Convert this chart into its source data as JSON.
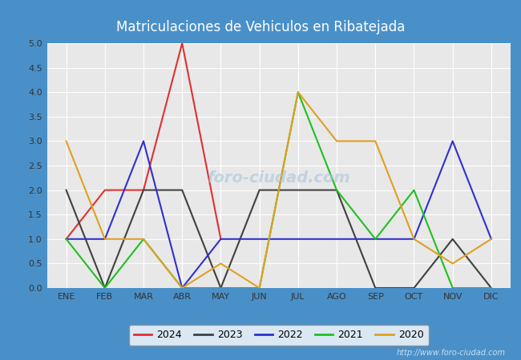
{
  "title": "Matriculaciones de Vehiculos en Ribatejada",
  "months": [
    "ENE",
    "FEB",
    "MAR",
    "ABR",
    "MAY",
    "JUN",
    "JUL",
    "AGO",
    "SEP",
    "OCT",
    "NOV",
    "DIC"
  ],
  "series": {
    "2024": {
      "color": "#e03030",
      "values": [
        1,
        2,
        2,
        5,
        1,
        null,
        null,
        null,
        null,
        null,
        null,
        null
      ]
    },
    "2023": {
      "color": "#404040",
      "values": [
        2,
        0,
        2,
        2,
        0,
        2,
        2,
        2,
        0,
        0,
        1,
        0
      ]
    },
    "2022": {
      "color": "#3030d0",
      "values": [
        1,
        1,
        3,
        0,
        1,
        1,
        1,
        1,
        1,
        1,
        3,
        1
      ]
    },
    "2021": {
      "color": "#20c020",
      "values": [
        1,
        0,
        1,
        0,
        0,
        0,
        4,
        2,
        1,
        2,
        0,
        0
      ]
    },
    "2020": {
      "color": "#e0a020",
      "values": [
        3,
        1,
        1,
        0,
        0.5,
        0,
        4,
        3,
        3,
        1,
        0.5,
        1
      ]
    }
  },
  "ylim": [
    0,
    5.0
  ],
  "yticks": [
    0.0,
    0.5,
    1.0,
    1.5,
    2.0,
    2.5,
    3.0,
    3.5,
    4.0,
    4.5,
    5.0
  ],
  "plot_bg": "#e8e8e8",
  "grid_color": "#ffffff",
  "header_color": "#4a90c8",
  "url": "http://www.foro-ciudad.com",
  "legend_order": [
    "2024",
    "2023",
    "2022",
    "2021",
    "2020"
  ],
  "linewidth": 1.5
}
